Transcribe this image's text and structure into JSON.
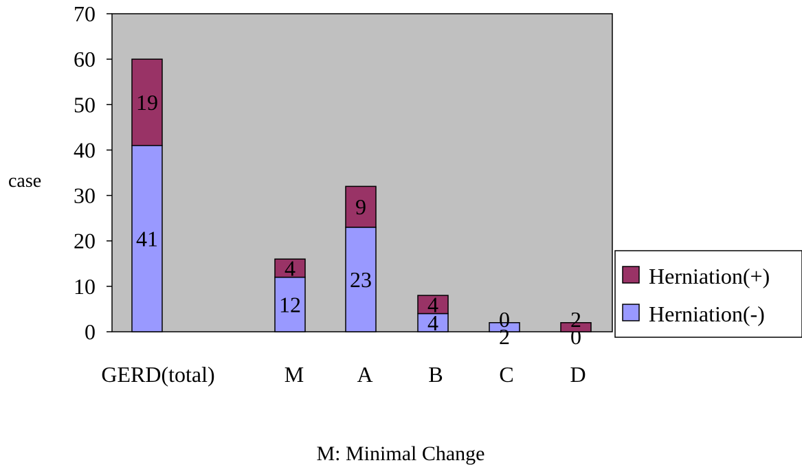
{
  "chart_data": {
    "type": "bar",
    "stacked": true,
    "title": "",
    "xlabel": "",
    "ylabel": "case",
    "ylim": [
      0,
      70
    ],
    "yticks": [
      0,
      10,
      20,
      30,
      40,
      50,
      60,
      70
    ],
    "grid": false,
    "legend_position": "right",
    "categories": [
      "GERD(total)",
      "M",
      "A",
      "B",
      "C",
      "D"
    ],
    "series": [
      {
        "name": "Herniation(-)",
        "values": [
          41,
          12,
          23,
          4,
          2,
          0
        ],
        "labels": [
          "41",
          "12",
          "23",
          "4",
          "2",
          "0"
        ],
        "color": "#9999ff"
      },
      {
        "name": "Herniation(+)",
        "values": [
          19,
          4,
          9,
          4,
          0,
          2
        ],
        "labels": [
          "19",
          "4",
          "9",
          "4",
          "0",
          "2"
        ],
        "color": "#993366"
      }
    ],
    "plot_background": "#c0c0c0",
    "footnote": "M: Minimal Change"
  }
}
